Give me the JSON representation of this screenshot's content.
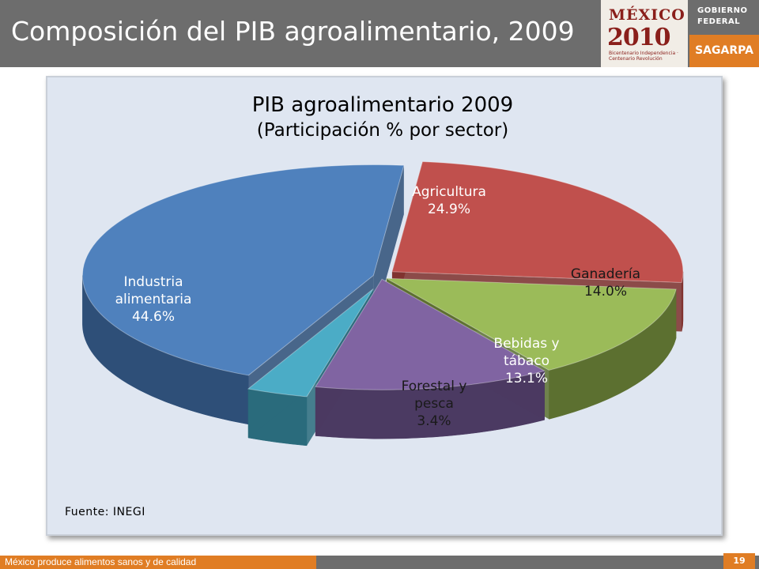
{
  "slide": {
    "title": "Composición del PIB agroalimentario, 2009",
    "footer": "México produce alimentos sanos y de calidad",
    "page_number": "19",
    "source": "Fuente: INEGI"
  },
  "logos": {
    "mexico_line1": "MÉXICO",
    "mexico_line2": "2010",
    "mexico_line3": "Bicentenario Independencia · Centenario Revolución",
    "gob_line1": "GOBIERNO",
    "gob_line2": "FEDERAL",
    "sagarpa": "SAGARPA"
  },
  "chart_data": {
    "type": "pie",
    "title": "PIB agroalimentario 2009",
    "subtitle": "(Participación % por sector)",
    "slices": [
      {
        "label": [
          "Agricultura"
        ],
        "value": 24.9,
        "value_label": "24.9%",
        "color": "#c0504d",
        "side": "#7e2f2c"
      },
      {
        "label": [
          "Ganadería"
        ],
        "value": 14.0,
        "value_label": "14.0%",
        "color": "#9bbb59",
        "side": "#5c7030"
      },
      {
        "label": [
          "Bebidas y",
          "tábaco"
        ],
        "value": 13.1,
        "value_label": "13.1%",
        "color": "#8064a2",
        "side": "#4b3a62"
      },
      {
        "label": [
          "Forestal y",
          "pesca"
        ],
        "value": 3.4,
        "value_label": "3.4%",
        "color": "#4bacc6",
        "side": "#2a6b7c"
      },
      {
        "label": [
          "Industria",
          "alimentaria"
        ],
        "value": 44.6,
        "value_label": "44.6%",
        "color": "#4f81bd",
        "side": "#2e4f78"
      }
    ]
  }
}
